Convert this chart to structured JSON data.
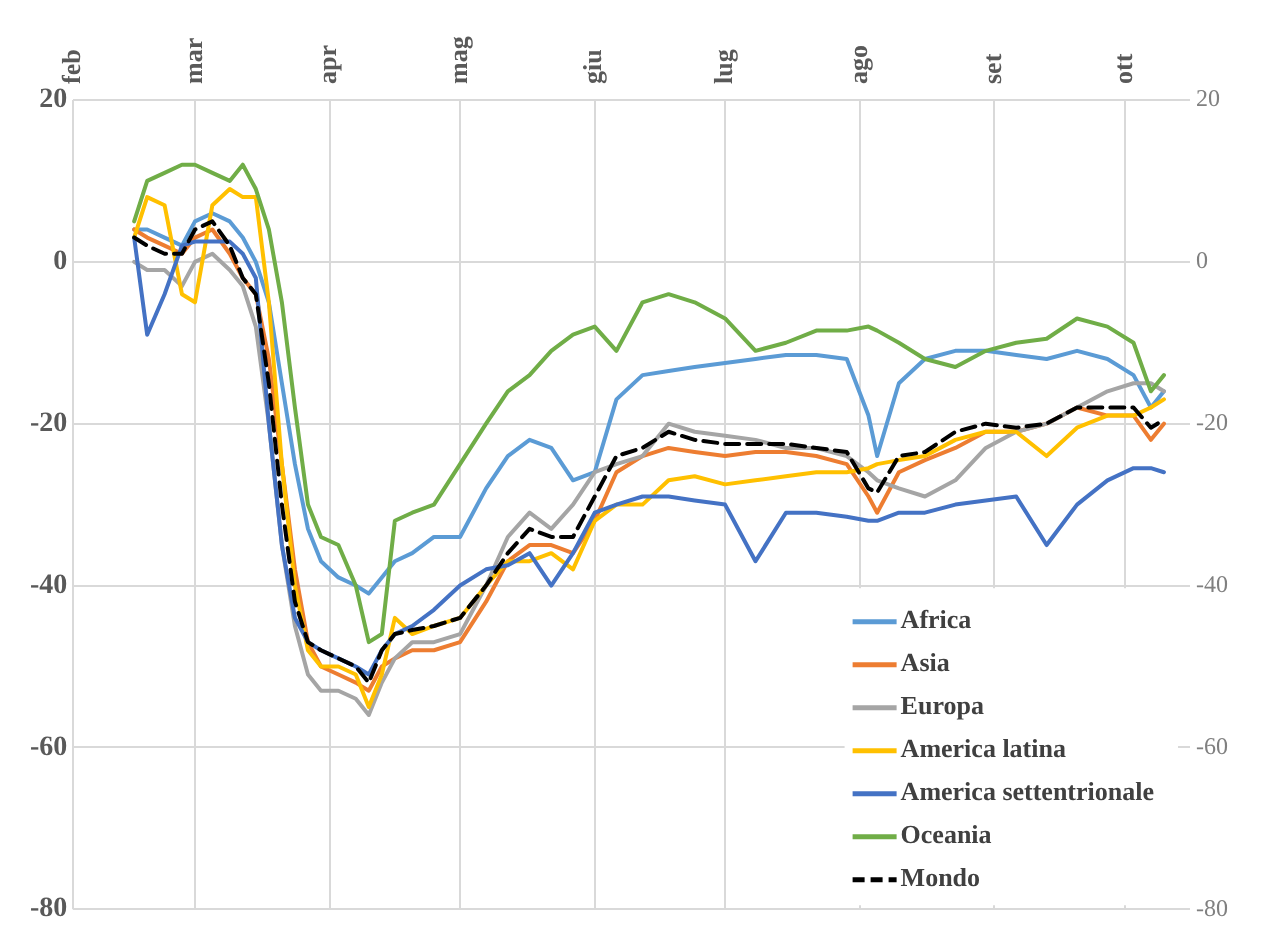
{
  "chart_data": {
    "type": "line",
    "x": [
      "--02-15",
      "--02-18",
      "--02-22",
      "--02-26",
      "--03-01",
      "--03-05",
      "--03-09",
      "--03-12",
      "--03-15",
      "--03-18",
      "--03-21",
      "--03-24",
      "--03-27",
      "--03-30",
      "--04-03",
      "--04-07",
      "--04-10",
      "--04-13",
      "--04-16",
      "--04-20",
      "--04-25",
      "--05-01",
      "--05-07",
      "--05-12",
      "--05-17",
      "--05-22",
      "--05-27",
      "--06-01",
      "--06-06",
      "--06-12",
      "--06-18",
      "--06-24",
      "--07-01",
      "--07-08",
      "--07-15",
      "--07-22",
      "--07-29",
      "--08-03",
      "--08-05",
      "--08-10",
      "--08-16",
      "--08-23",
      "--08-30",
      "--09-06",
      "--09-13",
      "--09-20",
      "--09-27",
      "--10-03",
      "--10-07",
      "--10-10"
    ],
    "series": [
      {
        "name": "Africa",
        "color": "#5b9bd5",
        "values": [
          4,
          4,
          3,
          2,
          5,
          6,
          5,
          3,
          0,
          -5,
          -15,
          -25,
          -33,
          -37,
          -39,
          -40,
          -41,
          -39,
          -37,
          -36,
          -34,
          -34,
          -28,
          -24,
          -22,
          -23,
          -27,
          -26,
          -17,
          -14,
          -13.5,
          -13,
          -12.5,
          -12,
          -11.5,
          -11.5,
          -12,
          -19,
          -24,
          -15,
          -12,
          -11,
          -11,
          -11.5,
          -12,
          -11,
          -12,
          -14,
          -18,
          -16
        ]
      },
      {
        "name": "Asia",
        "color": "#ed7d31",
        "values": [
          4,
          3,
          2,
          1,
          3,
          4,
          1,
          -2,
          -4,
          -12,
          -25,
          -38,
          -47,
          -50,
          -51,
          -52,
          -53,
          -50,
          -49,
          -48,
          -48,
          -47,
          -42,
          -37,
          -35,
          -35,
          -36,
          -32,
          -26,
          -24,
          -23,
          -23.5,
          -24,
          -23.5,
          -23.5,
          -24,
          -25,
          -29,
          -31,
          -26,
          -24.5,
          -23,
          -21,
          -21,
          -20,
          -18,
          -19,
          -19,
          -22,
          -20
        ]
      },
      {
        "name": "Europa",
        "color": "#a5a5a5",
        "values": [
          0,
          -1,
          -1,
          -3,
          0,
          1,
          -1,
          -3,
          -8,
          -20,
          -35,
          -45,
          -51,
          -53,
          -53,
          -54,
          -56,
          -52,
          -49,
          -47,
          -47,
          -46,
          -40,
          -34,
          -31,
          -33,
          -30,
          -26,
          -25,
          -24,
          -20,
          -21,
          -21.5,
          -22,
          -23,
          -23,
          -24,
          -26,
          -27,
          -28,
          -29,
          -27,
          -23,
          -21,
          -20,
          -18,
          -16,
          -15,
          -15,
          -16
        ]
      },
      {
        "name": "America latina",
        "color": "#ffc000",
        "values": [
          3,
          8,
          7,
          -4,
          -5,
          7,
          9,
          8,
          8,
          -5,
          -25,
          -40,
          -48,
          -50,
          -50,
          -51,
          -55,
          -51,
          -44,
          -46,
          -45,
          -44,
          -40,
          -37,
          -37,
          -36,
          -38,
          -32,
          -30,
          -30,
          -27,
          -26.5,
          -27.5,
          -27,
          -26.5,
          -26,
          -26,
          -25.5,
          -25,
          -24.5,
          -24,
          -22,
          -21,
          -21,
          -24,
          -20.5,
          -19,
          -19,
          -18,
          -17
        ]
      },
      {
        "name": "America settentrionale",
        "color": "#4472c4",
        "values": [
          3,
          -9,
          -4,
          2,
          2.5,
          2.5,
          2.5,
          1,
          -2,
          -20,
          -35,
          -44,
          -47,
          -48,
          -49,
          -50,
          -51,
          -48,
          -46,
          -45,
          -43,
          -40,
          -38,
          -37.5,
          -36,
          -40,
          -36,
          -31,
          -30,
          -29,
          -29,
          -29.5,
          -30,
          -37,
          -31,
          -31,
          -31.5,
          -32,
          -32,
          -31,
          -31,
          -30,
          -29.5,
          -29,
          -35,
          -30,
          -27,
          -25.5,
          -25.5,
          -26
        ]
      },
      {
        "name": "Oceania",
        "color": "#70ad47",
        "values": [
          5,
          10,
          11,
          12,
          12,
          11,
          10,
          12,
          9,
          4,
          -5,
          -18,
          -30,
          -34,
          -35,
          -40,
          -47,
          -46,
          -32,
          -31,
          -30,
          -25,
          -20,
          -16,
          -14,
          -11,
          -9,
          -8,
          -11,
          -5,
          -4,
          -5,
          -7,
          -11,
          -10,
          -8.5,
          -8.5,
          -8,
          -8.5,
          -10,
          -12,
          -13,
          -11,
          -10,
          -9.5,
          -7,
          -8,
          -10,
          -16,
          -14
        ]
      },
      {
        "name": "Mondo",
        "color": "#000000",
        "line_style": "dashed",
        "values": [
          3,
          2,
          1,
          1,
          4,
          5,
          2,
          -2,
          -4,
          -15,
          -30,
          -42,
          -47,
          -48,
          -49,
          -50,
          -52,
          -48,
          -46,
          -45.5,
          -45,
          -44,
          -40,
          -36,
          -33,
          -34,
          -34,
          -29,
          -24,
          -23,
          -21,
          -22,
          -22.5,
          -22.5,
          -22.5,
          -23,
          -23.5,
          -28,
          -28.5,
          -24,
          -23.5,
          -21,
          -20,
          -20.5,
          -20,
          -18,
          -18,
          -18,
          -20.5,
          -19.5
        ]
      }
    ],
    "xlim": [
      "--02-01",
      "--10-16"
    ],
    "xticks": [
      {
        "value": "--02-01",
        "label": "feb"
      },
      {
        "value": "--03-01",
        "label": "mar"
      },
      {
        "value": "--04-01",
        "label": "apr"
      },
      {
        "value": "--05-01",
        "label": "mag"
      },
      {
        "value": "--06-01",
        "label": "giu"
      },
      {
        "value": "--07-01",
        "label": "lug"
      },
      {
        "value": "--08-01",
        "label": "ago"
      },
      {
        "value": "--09-01",
        "label": "set"
      },
      {
        "value": "--10-01",
        "label": "ott"
      }
    ],
    "ylim": [
      -80,
      20
    ],
    "yticks": [
      -80,
      -60,
      -40,
      -20,
      0,
      20
    ],
    "y2lim": [
      -80,
      20
    ],
    "y2ticks": [
      -80,
      -60,
      -40,
      -20,
      0,
      20
    ],
    "grid": true,
    "legend": "bottom right",
    "marker": "none",
    "line_style": "solid"
  }
}
